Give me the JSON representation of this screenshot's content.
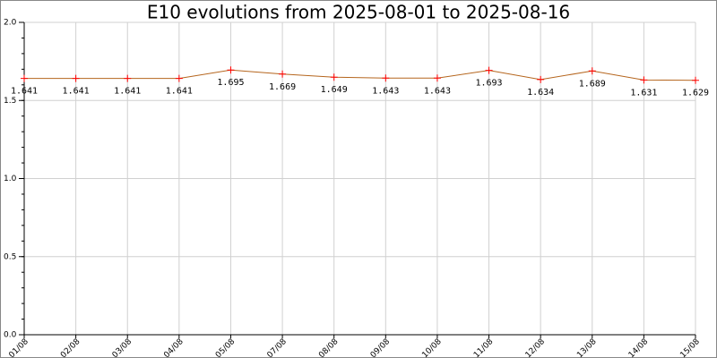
{
  "chart_data": {
    "type": "line",
    "title": "E10 evolutions from 2025-08-01 to 2025-08-16",
    "categories": [
      "01/08",
      "02/08",
      "03/08",
      "04/08",
      "05/08",
      "07/08",
      "08/08",
      "09/08",
      "10/08",
      "11/08",
      "12/08",
      "13/08",
      "14/08",
      "15/08"
    ],
    "values": [
      1.641,
      1.641,
      1.641,
      1.641,
      1.695,
      1.669,
      1.649,
      1.643,
      1.643,
      1.693,
      1.634,
      1.689,
      1.631,
      1.629
    ],
    "color": "#b5651d",
    "marker_color": "#ff0000",
    "ylim": [
      0,
      2
    ],
    "yticks": [
      {
        "value": 0,
        "label": "0.0"
      },
      0.5,
      {
        "value": 1,
        "label": "1.0"
      },
      1.5,
      {
        "value": 2,
        "label": "2.0"
      }
    ],
    "grid": true
  }
}
